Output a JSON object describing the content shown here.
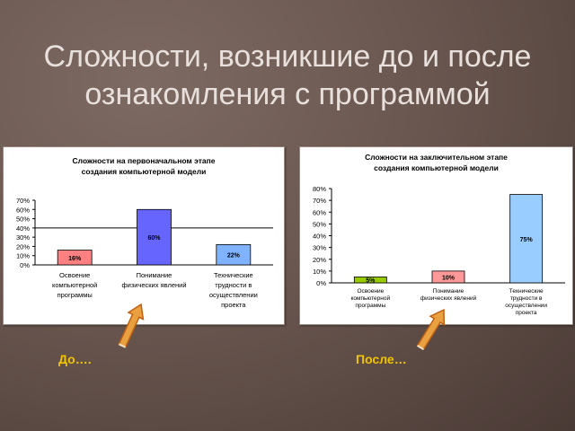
{
  "slide": {
    "title_line1": "Сложности, возникшие до и после",
    "title_line2": "ознакомления с программой"
  },
  "captions": {
    "left": "До….",
    "right": "После…"
  },
  "chart_data": [
    {
      "type": "bar",
      "title_line1": "Сложности  на первоначальном этапе",
      "title_line2": "создания компьютерной модели",
      "categories": [
        [
          "Освоение",
          "компьютерной",
          "программы"
        ],
        [
          "Понимание",
          "физических явлений"
        ],
        [
          "Технические",
          "трудности в",
          "осуществлении",
          "проекта"
        ]
      ],
      "values": [
        16,
        60,
        22
      ],
      "value_labels": [
        "16%",
        "60%",
        "22%"
      ],
      "colors": [
        "#ff8080",
        "#6666ff",
        "#80b3ff"
      ],
      "yticks": [
        "70%",
        "60%",
        "50%",
        "40%",
        "30%",
        "20%",
        "10%",
        "0%"
      ],
      "ylim": [
        0,
        70
      ],
      "grid": false
    },
    {
      "type": "bar",
      "title_line1": "Сложности на заключительном этапе",
      "title_line2": "создания компьютерной модели",
      "categories": [
        [
          "Освоение",
          "компьютерной",
          "программы"
        ],
        [
          "Понимание",
          "физических явлений"
        ],
        [
          "Технические",
          "трудности в",
          "осуществлении",
          "проекта"
        ]
      ],
      "values": [
        5,
        10,
        75
      ],
      "value_labels": [
        "5%",
        "10%",
        "75%"
      ],
      "colors": [
        "#99cc00",
        "#ff9999",
        "#99ccff"
      ],
      "yticks": [
        "80%",
        "70%",
        "60%",
        "50%",
        "40%",
        "30%",
        "20%",
        "10%",
        "0%"
      ],
      "ylim": [
        0,
        80
      ],
      "grid": false
    }
  ],
  "arrow_colors": {
    "fill": "#e8a040",
    "edge": "#c06010"
  }
}
